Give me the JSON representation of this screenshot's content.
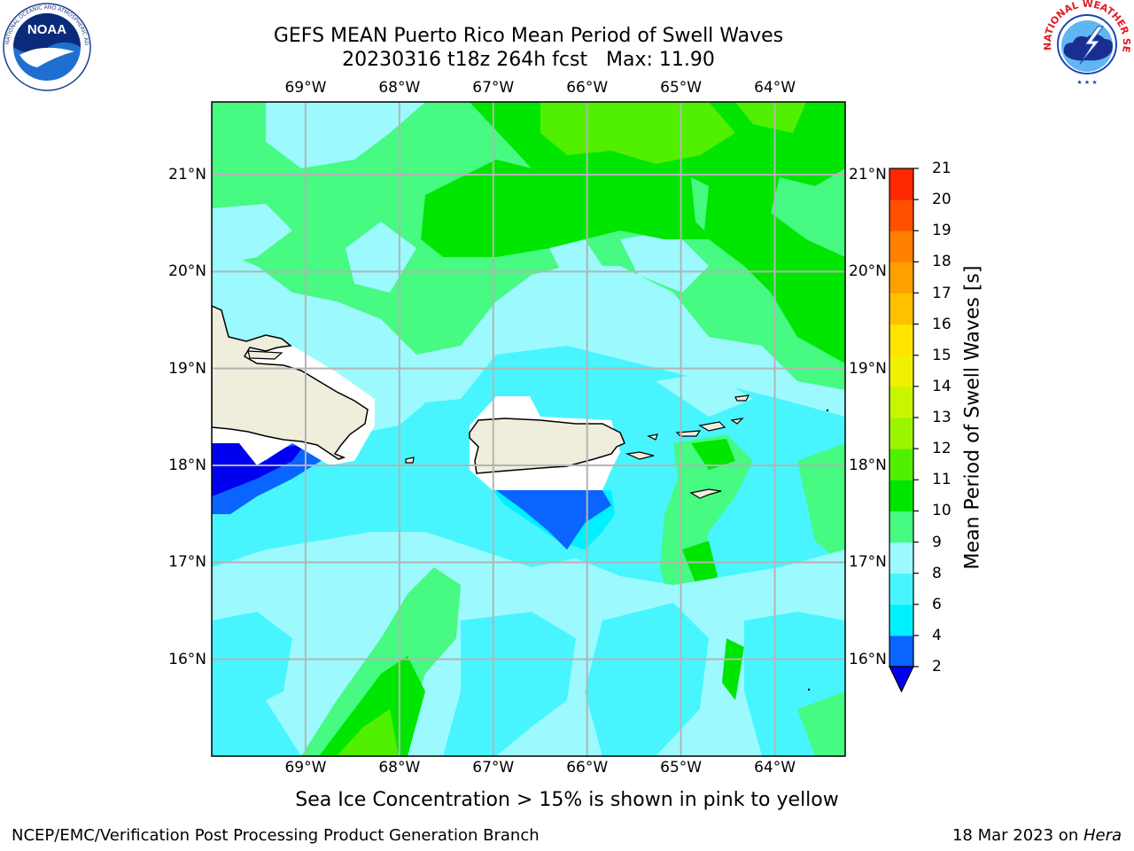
{
  "header": {
    "title_line1": "GEFS MEAN Puerto Rico Mean Period of Swell Waves",
    "title_line2": "20230316 t18z 264h fcst   Max: 11.90"
  },
  "logos": {
    "left": {
      "name": "noaa-logo",
      "text": "NOAA",
      "ring_text": "NATIONAL OCEANIC AND ATMOSPHERIC ADMINISTRATION · U.S. DEPARTMENT OF COMMERCE"
    },
    "right": {
      "name": "nws-logo",
      "ring_text": "NATIONAL WEATHER SERVICE"
    }
  },
  "map": {
    "lon_labels": [
      "69°W",
      "68°W",
      "67°W",
      "66°W",
      "65°W",
      "64°W"
    ],
    "lat_labels": [
      "21°N",
      "20°N",
      "19°N",
      "18°N",
      "17°N",
      "16°N"
    ],
    "lon_values": [
      -69,
      -68,
      -67,
      -66,
      -65,
      -64
    ],
    "lat_values": [
      21,
      20,
      19,
      18,
      17,
      16
    ],
    "extent": {
      "lon_min": -70.0,
      "lon_max": -63.25,
      "lat_min": 15.0,
      "lat_max": 21.75
    },
    "land_color": "#efeddc",
    "grid_color": "#b4b4b4"
  },
  "colorbar": {
    "label": "Mean Period of Swell Waves [s]",
    "ticks": [
      "2",
      "4",
      "6",
      "8",
      "9",
      "10",
      "11",
      "12",
      "13",
      "14",
      "15",
      "16",
      "17",
      "18",
      "19",
      "20",
      "21"
    ],
    "levels": [
      2,
      4,
      6,
      8,
      9,
      10,
      11,
      12,
      13,
      14,
      15,
      16,
      17,
      18,
      19,
      20,
      21
    ],
    "colors": [
      "#0a64ff",
      "#00f0ff",
      "#48f5ff",
      "#9cfaff",
      "#46fa82",
      "#00e600",
      "#50f000",
      "#9cf500",
      "#c8f500",
      "#f0f000",
      "#ffe400",
      "#ffc000",
      "#ffa000",
      "#ff8000",
      "#ff5000",
      "#ff2800",
      "#ff0000"
    ],
    "under_color": "#0000f0"
  },
  "note": "Sea Ice Concentration > 15% is shown in pink to yellow",
  "footer": {
    "left": "NCEP/EMC/Verification Post Processing Product Generation Branch",
    "date": "18 Mar 2023 on ",
    "host": "Hera"
  }
}
